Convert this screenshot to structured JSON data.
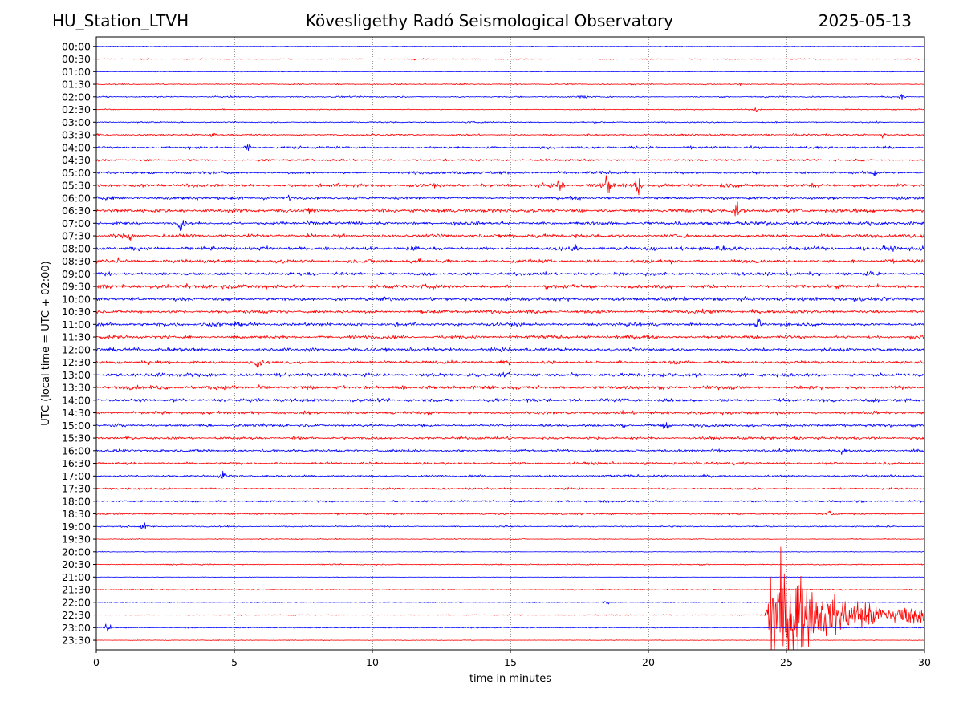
{
  "header": {
    "station": "HU_Station_LTVH",
    "title": "Kövesligethy Radó Seismological Observatory",
    "date": "2025-05-13"
  },
  "chart_data": {
    "type": "line",
    "title": "Kövesligethy Radó Seismological Observatory",
    "xlabel": "time in minutes",
    "ylabel": "UTC (local time = UTC + 02:00)",
    "xlim": [
      0,
      30
    ],
    "xticks": [
      "0",
      "5",
      "10",
      "15",
      "20",
      "25",
      "30"
    ],
    "vertical_gridlines_minutes": [
      5,
      10,
      15,
      20,
      25
    ],
    "grid": "vertical dotted",
    "row_labels": [
      "00:00",
      "00:30",
      "01:00",
      "01:30",
      "02:00",
      "02:30",
      "03:00",
      "03:30",
      "04:00",
      "04:30",
      "05:00",
      "05:30",
      "06:00",
      "06:30",
      "07:00",
      "07:30",
      "08:00",
      "08:30",
      "09:00",
      "09:30",
      "10:00",
      "10:30",
      "11:00",
      "11:30",
      "12:00",
      "12:30",
      "13:00",
      "13:30",
      "14:00",
      "14:30",
      "15:00",
      "15:30",
      "16:00",
      "16:30",
      "17:00",
      "17:30",
      "18:00",
      "18:30",
      "19:00",
      "19:30",
      "20:00",
      "20:30",
      "21:00",
      "21:30",
      "22:00",
      "22:30",
      "23:00",
      "23:30"
    ],
    "row_colors": [
      "#0000ff",
      "#ff0000"
    ],
    "noise_level": [
      0.3,
      0.4,
      0.3,
      0.5,
      0.6,
      0.5,
      0.6,
      0.8,
      1.2,
      0.9,
      1.3,
      1.7,
      1.4,
      1.8,
      1.6,
      1.7,
      1.9,
      1.7,
      1.6,
      1.8,
      1.7,
      1.6,
      1.6,
      1.5,
      1.6,
      1.5,
      1.6,
      1.7,
      1.6,
      1.4,
      1.3,
      1.2,
      1.3,
      1.2,
      1.1,
      0.9,
      0.9,
      0.8,
      0.6,
      0.4,
      0.3,
      0.5,
      0.2,
      0.5,
      0.4,
      0.4,
      0.5,
      0.3
    ],
    "events": [
      {
        "row": "00:30",
        "minute": 11.5,
        "amplitude": 1.5
      },
      {
        "row": "01:30",
        "minute": 23.3,
        "amplitude": 2.5
      },
      {
        "row": "02:00",
        "minute": 17.6,
        "amplitude": 3
      },
      {
        "row": "02:00",
        "minute": 29.2,
        "amplitude": 3
      },
      {
        "row": "02:30",
        "minute": 23.9,
        "amplitude": 2.5
      },
      {
        "row": "03:30",
        "minute": 4.2,
        "amplitude": 2.5
      },
      {
        "row": "03:30",
        "minute": 28.5,
        "amplitude": 3
      },
      {
        "row": "04:00",
        "minute": 5.5,
        "amplitude": 5
      },
      {
        "row": "05:00",
        "minute": 28.2,
        "amplitude": 3
      },
      {
        "row": "05:30",
        "minute": 16.8,
        "amplitude": 7
      },
      {
        "row": "05:30",
        "minute": 18.5,
        "amplitude": 12
      },
      {
        "row": "05:30",
        "minute": 19.6,
        "amplitude": 13
      },
      {
        "row": "06:00",
        "minute": 6.9,
        "amplitude": 4
      },
      {
        "row": "06:30",
        "minute": 23.2,
        "amplitude": 6
      },
      {
        "row": "07:00",
        "minute": 3.1,
        "amplitude": 9
      },
      {
        "row": "07:30",
        "minute": 1.2,
        "amplitude": 6
      },
      {
        "row": "08:00",
        "minute": 17.3,
        "amplitude": 5
      },
      {
        "row": "08:30",
        "minute": 0.8,
        "amplitude": 4
      },
      {
        "row": "11:00",
        "minute": 24.0,
        "amplitude": 5
      },
      {
        "row": "12:30",
        "minute": 5.9,
        "amplitude": 6
      },
      {
        "row": "15:00",
        "minute": 20.6,
        "amplitude": 4
      },
      {
        "row": "16:00",
        "minute": 27.0,
        "amplitude": 4
      },
      {
        "row": "17:00",
        "minute": 4.6,
        "amplitude": 5
      },
      {
        "row": "18:30",
        "minute": 26.6,
        "amplitude": 4
      },
      {
        "row": "19:00",
        "minute": 1.7,
        "amplitude": 4
      },
      {
        "row": "22:00",
        "minute": 18.5,
        "amplitude": 3
      },
      {
        "row": "23:00",
        "minute": 0.4,
        "amplitude": 8
      }
    ],
    "earthquake": {
      "row": "22:30",
      "start_minute": 24.2,
      "peak_minute": 24.5,
      "decay_minutes": 1.6,
      "tail_end_minute": 30
    }
  }
}
